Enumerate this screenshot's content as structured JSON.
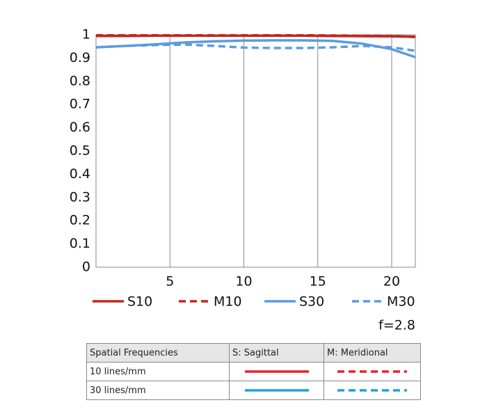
{
  "chart_data": {
    "type": "line",
    "annotation": "f=2.8",
    "x": [
      0,
      2,
      4,
      6,
      8,
      10,
      12,
      14,
      16,
      18,
      20,
      21.6
    ],
    "series": [
      {
        "name": "S10",
        "color": "#c0281e",
        "style": "solid",
        "values": [
          0.995,
          0.995,
          0.996,
          0.996,
          0.996,
          0.996,
          0.996,
          0.996,
          0.995,
          0.994,
          0.993,
          0.992
        ]
      },
      {
        "name": "M10",
        "color": "#c0281e",
        "style": "dashed",
        "values": [
          0.998,
          0.998,
          0.998,
          0.998,
          0.998,
          0.998,
          0.998,
          0.998,
          0.997,
          0.996,
          0.995,
          0.99
        ]
      },
      {
        "name": "S30",
        "color": "#5b9be0",
        "style": "solid",
        "values": [
          0.946,
          0.952,
          0.959,
          0.967,
          0.972,
          0.975,
          0.976,
          0.976,
          0.974,
          0.962,
          0.938,
          0.904
        ]
      },
      {
        "name": "M30",
        "color": "#5b9be0",
        "style": "dashed",
        "values": [
          0.946,
          0.952,
          0.956,
          0.958,
          0.952,
          0.945,
          0.943,
          0.943,
          0.946,
          0.952,
          0.946,
          0.931
        ]
      }
    ],
    "xlim": [
      0,
      21.6
    ],
    "xticks": [
      5,
      10,
      15,
      20
    ],
    "ylim": [
      0,
      1
    ],
    "yticks": [
      0,
      0.1,
      0.2,
      0.3,
      0.4,
      0.5,
      0.6,
      0.7,
      0.8,
      0.9,
      1
    ],
    "grid": "x"
  },
  "table": {
    "header": [
      "Spatial Frequencies",
      "S: Sagittal",
      "M: Meridional"
    ],
    "rows": [
      "10 lines/mm",
      "30 lines/mm"
    ]
  }
}
